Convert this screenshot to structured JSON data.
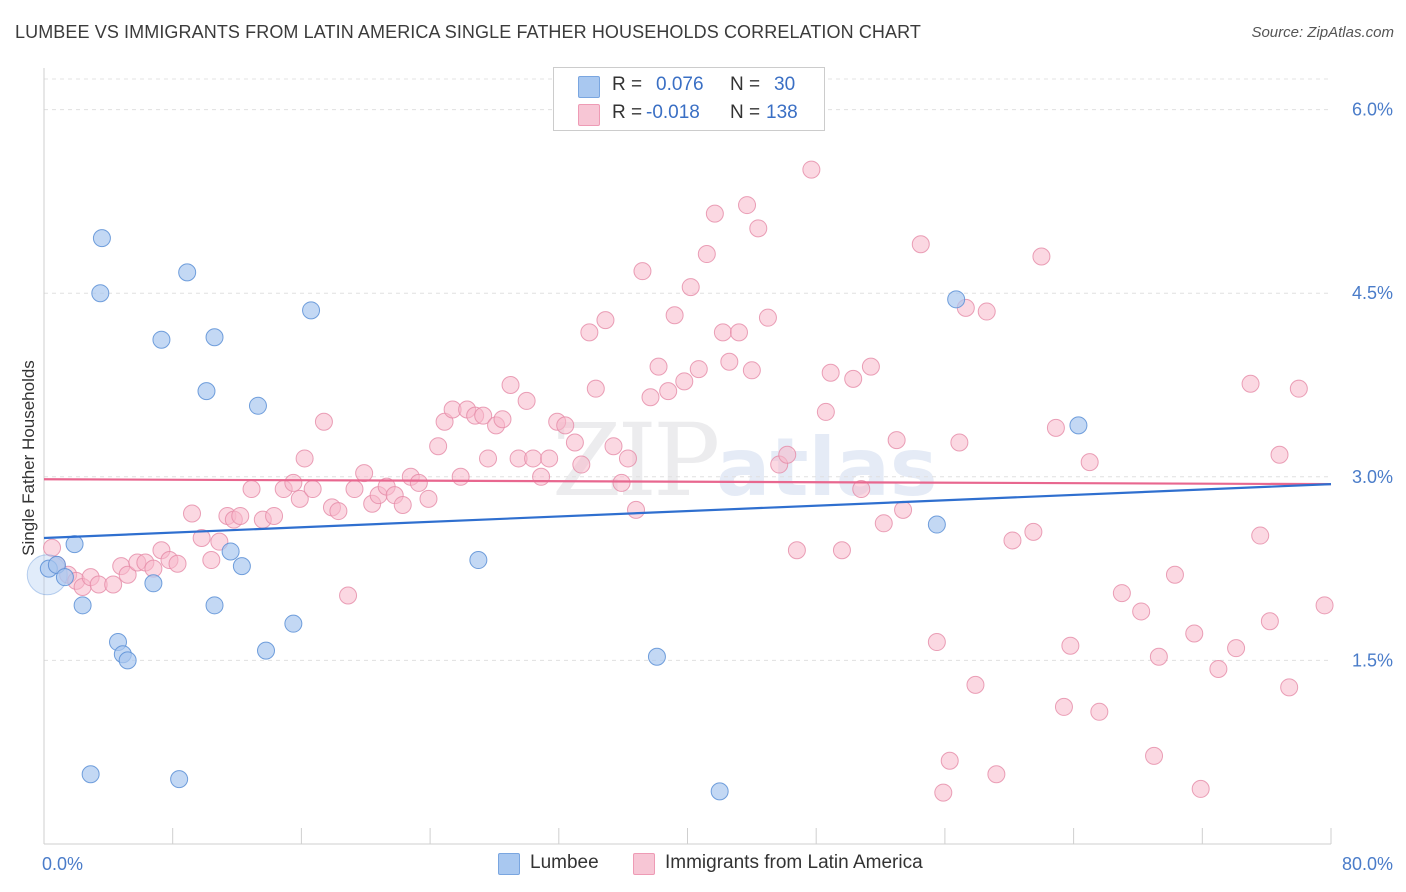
{
  "header": {
    "title": "LUMBEE VS IMMIGRANTS FROM LATIN AMERICA SINGLE FATHER HOUSEHOLDS CORRELATION CHART",
    "source": "Source: ZipAtlas.com"
  },
  "legend": {
    "rows": [
      {
        "r_label": "R =",
        "r_value": "0.076",
        "n_label": "N =",
        "n_value": "30",
        "color": "#a9c8f0"
      },
      {
        "r_label": "R =",
        "r_value": "-0.018",
        "n_label": "N =",
        "n_value": "138",
        "color": "#f7b8cb"
      }
    ]
  },
  "bottom_legend": {
    "lumbee": "Lumbee",
    "immigrants": "Immigrants from Latin America"
  },
  "watermark": {
    "zip": "ZIP",
    "atlas": "atlas"
  },
  "chart_data": {
    "type": "scatter",
    "xlabel": "",
    "ylabel": "Single Father Households",
    "xlim": [
      0,
      80
    ],
    "ylim": [
      0,
      6.25
    ],
    "x_tick_labels": [
      "0.0%",
      "80.0%"
    ],
    "y_ticks": [
      1.5,
      3.0,
      4.5,
      6.0
    ],
    "y_tick_labels": [
      "1.5%",
      "3.0%",
      "4.5%",
      "6.0%"
    ],
    "grid": true,
    "colors": {
      "lumbee_fill": "#a9c8f0",
      "lumbee_stroke": "#5b8fd6",
      "lumbee_line": "#2f6fcf",
      "immig_fill": "#f7b8cb",
      "immig_stroke": "#e58aa6",
      "immig_line": "#e8678f"
    },
    "series": [
      {
        "name": "Lumbee",
        "trend": {
          "x": [
            0,
            80
          ],
          "y": [
            2.5,
            2.94
          ]
        },
        "points": [
          [
            0.3,
            2.25
          ],
          [
            0.8,
            2.28
          ],
          [
            1.3,
            2.18
          ],
          [
            1.9,
            2.45
          ],
          [
            2.4,
            1.95
          ],
          [
            2.9,
            0.57
          ],
          [
            3.6,
            4.95
          ],
          [
            3.5,
            4.5
          ],
          [
            4.6,
            1.65
          ],
          [
            4.9,
            1.55
          ],
          [
            5.2,
            1.5
          ],
          [
            6.8,
            2.13
          ],
          [
            7.3,
            4.12
          ],
          [
            8.4,
            0.53
          ],
          [
            8.9,
            4.67
          ],
          [
            10.1,
            3.7
          ],
          [
            10.6,
            4.14
          ],
          [
            10.6,
            1.95
          ],
          [
            11.6,
            2.39
          ],
          [
            12.3,
            2.27
          ],
          [
            13.3,
            3.58
          ],
          [
            13.8,
            1.58
          ],
          [
            15.5,
            1.8
          ],
          [
            16.6,
            4.36
          ],
          [
            27.0,
            2.32
          ],
          [
            38.1,
            1.53
          ],
          [
            42.0,
            0.43
          ],
          [
            55.5,
            2.61
          ],
          [
            56.7,
            4.45
          ],
          [
            64.3,
            3.42
          ]
        ]
      },
      {
        "name": "Immigrants from Latin America",
        "trend": {
          "x": [
            0,
            80
          ],
          "y": [
            2.98,
            2.94
          ]
        },
        "points": [
          [
            0.5,
            2.42
          ],
          [
            0.8,
            2.28
          ],
          [
            1.5,
            2.2
          ],
          [
            2.0,
            2.15
          ],
          [
            2.4,
            2.1
          ],
          [
            2.9,
            2.18
          ],
          [
            3.4,
            2.12
          ],
          [
            4.3,
            2.12
          ],
          [
            4.8,
            2.27
          ],
          [
            5.2,
            2.2
          ],
          [
            5.8,
            2.3
          ],
          [
            6.3,
            2.3
          ],
          [
            6.8,
            2.25
          ],
          [
            7.3,
            2.4
          ],
          [
            7.8,
            2.32
          ],
          [
            8.3,
            2.29
          ],
          [
            9.2,
            2.7
          ],
          [
            9.8,
            2.5
          ],
          [
            10.4,
            2.32
          ],
          [
            10.9,
            2.47
          ],
          [
            11.4,
            2.68
          ],
          [
            11.8,
            2.65
          ],
          [
            12.2,
            2.68
          ],
          [
            12.9,
            2.9
          ],
          [
            13.6,
            2.65
          ],
          [
            14.3,
            2.68
          ],
          [
            14.9,
            2.9
          ],
          [
            15.5,
            2.95
          ],
          [
            15.9,
            2.82
          ],
          [
            16.2,
            3.15
          ],
          [
            16.7,
            2.9
          ],
          [
            17.4,
            3.45
          ],
          [
            17.9,
            2.75
          ],
          [
            18.3,
            2.72
          ],
          [
            18.9,
            2.03
          ],
          [
            19.3,
            2.9
          ],
          [
            19.9,
            3.03
          ],
          [
            20.4,
            2.78
          ],
          [
            20.8,
            2.85
          ],
          [
            21.3,
            2.92
          ],
          [
            21.8,
            2.85
          ],
          [
            22.3,
            2.77
          ],
          [
            22.8,
            3.0
          ],
          [
            23.3,
            2.95
          ],
          [
            23.9,
            2.82
          ],
          [
            24.5,
            3.25
          ],
          [
            24.9,
            3.45
          ],
          [
            25.4,
            3.55
          ],
          [
            25.9,
            3.0
          ],
          [
            26.3,
            3.55
          ],
          [
            26.8,
            3.5
          ],
          [
            27.3,
            3.5
          ],
          [
            27.6,
            3.15
          ],
          [
            28.1,
            3.42
          ],
          [
            28.5,
            3.47
          ],
          [
            29.0,
            3.75
          ],
          [
            29.5,
            3.15
          ],
          [
            30.0,
            3.62
          ],
          [
            30.4,
            3.15
          ],
          [
            30.9,
            3.0
          ],
          [
            31.4,
            3.15
          ],
          [
            31.9,
            3.45
          ],
          [
            32.4,
            3.42
          ],
          [
            33.0,
            3.28
          ],
          [
            33.4,
            3.1
          ],
          [
            33.9,
            4.18
          ],
          [
            34.3,
            3.72
          ],
          [
            34.9,
            4.28
          ],
          [
            35.4,
            3.25
          ],
          [
            35.9,
            2.95
          ],
          [
            36.3,
            3.15
          ],
          [
            36.8,
            2.73
          ],
          [
            37.2,
            4.68
          ],
          [
            37.7,
            3.65
          ],
          [
            38.2,
            3.9
          ],
          [
            38.8,
            3.7
          ],
          [
            39.2,
            4.32
          ],
          [
            39.8,
            3.78
          ],
          [
            40.2,
            4.55
          ],
          [
            40.7,
            3.88
          ],
          [
            41.2,
            4.82
          ],
          [
            41.7,
            5.15
          ],
          [
            42.2,
            4.18
          ],
          [
            42.6,
            3.94
          ],
          [
            43.2,
            4.18
          ],
          [
            43.7,
            5.22
          ],
          [
            44.0,
            3.87
          ],
          [
            44.4,
            5.03
          ],
          [
            45.0,
            4.3
          ],
          [
            45.7,
            3.1
          ],
          [
            46.2,
            3.18
          ],
          [
            46.8,
            2.4
          ],
          [
            47.7,
            5.51
          ],
          [
            48.6,
            3.53
          ],
          [
            48.9,
            3.85
          ],
          [
            49.6,
            2.4
          ],
          [
            50.3,
            3.8
          ],
          [
            50.8,
            2.9
          ],
          [
            51.4,
            3.9
          ],
          [
            52.2,
            2.62
          ],
          [
            53.0,
            3.3
          ],
          [
            53.4,
            2.73
          ],
          [
            54.5,
            4.9
          ],
          [
            55.5,
            1.65
          ],
          [
            56.3,
            0.68
          ],
          [
            55.9,
            0.42
          ],
          [
            56.9,
            3.28
          ],
          [
            57.3,
            4.38
          ],
          [
            57.9,
            1.3
          ],
          [
            58.6,
            4.35
          ],
          [
            59.2,
            0.57
          ],
          [
            60.2,
            2.48
          ],
          [
            61.5,
            2.55
          ],
          [
            62.0,
            4.8
          ],
          [
            62.9,
            3.4
          ],
          [
            63.4,
            1.12
          ],
          [
            63.8,
            1.62
          ],
          [
            65.0,
            3.12
          ],
          [
            65.6,
            1.08
          ],
          [
            67.0,
            2.05
          ],
          [
            68.2,
            1.9
          ],
          [
            69.0,
            0.72
          ],
          [
            69.3,
            1.53
          ],
          [
            70.3,
            2.2
          ],
          [
            71.5,
            1.72
          ],
          [
            71.9,
            0.45
          ],
          [
            73.0,
            1.43
          ],
          [
            74.1,
            1.6
          ],
          [
            75.0,
            3.76
          ],
          [
            75.6,
            2.52
          ],
          [
            76.2,
            1.82
          ],
          [
            76.8,
            3.18
          ],
          [
            77.4,
            1.28
          ],
          [
            78.0,
            3.72
          ],
          [
            79.6,
            1.95
          ]
        ]
      }
    ]
  }
}
